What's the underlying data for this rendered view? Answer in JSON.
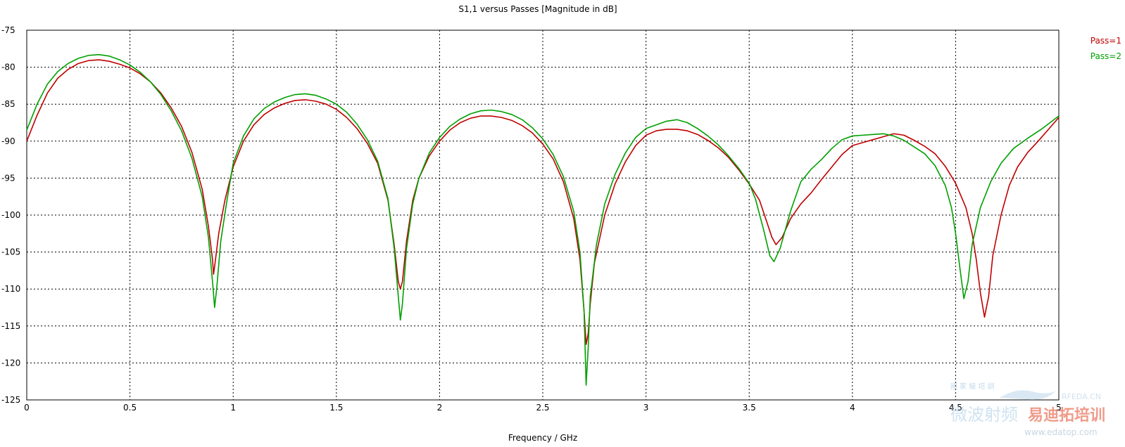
{
  "chart_data": {
    "type": "line",
    "title": "S1,1 versus Passes [Magnitude in dB]",
    "xlabel": "Frequency / GHz",
    "ylabel": "",
    "xlim": [
      0,
      5
    ],
    "ylim": [
      -125,
      -75
    ],
    "xticks": [
      0,
      0.5,
      1,
      1.5,
      2,
      2.5,
      3,
      3.5,
      4,
      4.5,
      5
    ],
    "xtick_labels": [
      "0",
      "0.5",
      "1",
      "1.5",
      "2",
      "2.5",
      "3",
      "3.5",
      "4",
      "4.5",
      "5"
    ],
    "yticks": [
      -75,
      -80,
      -85,
      -90,
      -95,
      -100,
      -105,
      -110,
      -115,
      -120,
      -125
    ],
    "ytick_labels": [
      "-75",
      "-80",
      "-85",
      "-90",
      "-95",
      "-100",
      "-105",
      "-110",
      "-115",
      "-120",
      "-125"
    ],
    "grid": true,
    "legend_position": "top-right",
    "series": [
      {
        "name": "Pass=1",
        "color": "#c00000",
        "points": [
          [
            0,
            -90.0
          ],
          [
            0.05,
            -86.5
          ],
          [
            0.1,
            -83.5
          ],
          [
            0.15,
            -81.5
          ],
          [
            0.2,
            -80.3
          ],
          [
            0.25,
            -79.5
          ],
          [
            0.3,
            -79.1
          ],
          [
            0.35,
            -79.0
          ],
          [
            0.4,
            -79.2
          ],
          [
            0.45,
            -79.6
          ],
          [
            0.5,
            -80.1
          ],
          [
            0.55,
            -80.9
          ],
          [
            0.6,
            -82.0
          ],
          [
            0.65,
            -83.5
          ],
          [
            0.7,
            -85.5
          ],
          [
            0.75,
            -88.0
          ],
          [
            0.8,
            -91.5
          ],
          [
            0.85,
            -96.5
          ],
          [
            0.88,
            -101.5
          ],
          [
            0.9,
            -106.0
          ],
          [
            0.905,
            -108.0
          ],
          [
            0.91,
            -107.0
          ],
          [
            0.93,
            -102.5
          ],
          [
            0.96,
            -98.0
          ],
          [
            1.0,
            -93.5
          ],
          [
            1.05,
            -90.0
          ],
          [
            1.1,
            -87.8
          ],
          [
            1.15,
            -86.4
          ],
          [
            1.2,
            -85.5
          ],
          [
            1.25,
            -84.9
          ],
          [
            1.3,
            -84.5
          ],
          [
            1.35,
            -84.4
          ],
          [
            1.4,
            -84.6
          ],
          [
            1.45,
            -85.0
          ],
          [
            1.5,
            -85.7
          ],
          [
            1.55,
            -86.8
          ],
          [
            1.6,
            -88.3
          ],
          [
            1.65,
            -90.3
          ],
          [
            1.7,
            -93.0
          ],
          [
            1.75,
            -98.0
          ],
          [
            1.78,
            -104.0
          ],
          [
            1.8,
            -109.0
          ],
          [
            1.81,
            -110.0
          ],
          [
            1.82,
            -109.0
          ],
          [
            1.84,
            -103.5
          ],
          [
            1.87,
            -98.0
          ],
          [
            1.9,
            -95.0
          ],
          [
            1.95,
            -92.0
          ],
          [
            2.0,
            -90.0
          ],
          [
            2.05,
            -88.5
          ],
          [
            2.1,
            -87.5
          ],
          [
            2.15,
            -86.9
          ],
          [
            2.2,
            -86.6
          ],
          [
            2.25,
            -86.6
          ],
          [
            2.3,
            -86.8
          ],
          [
            2.35,
            -87.2
          ],
          [
            2.4,
            -87.9
          ],
          [
            2.45,
            -88.9
          ],
          [
            2.5,
            -90.4
          ],
          [
            2.55,
            -92.4
          ],
          [
            2.6,
            -95.5
          ],
          [
            2.65,
            -100.5
          ],
          [
            2.68,
            -106.0
          ],
          [
            2.7,
            -113.0
          ],
          [
            2.71,
            -117.5
          ],
          [
            2.72,
            -116.0
          ],
          [
            2.73,
            -112.0
          ],
          [
            2.75,
            -106.5
          ],
          [
            2.8,
            -100.0
          ],
          [
            2.85,
            -95.8
          ],
          [
            2.9,
            -92.8
          ],
          [
            2.95,
            -90.6
          ],
          [
            3.0,
            -89.2
          ],
          [
            3.05,
            -88.6
          ],
          [
            3.1,
            -88.4
          ],
          [
            3.15,
            -88.4
          ],
          [
            3.2,
            -88.6
          ],
          [
            3.25,
            -89.1
          ],
          [
            3.3,
            -89.9
          ],
          [
            3.35,
            -90.9
          ],
          [
            3.4,
            -92.2
          ],
          [
            3.45,
            -93.9
          ],
          [
            3.5,
            -95.8
          ],
          [
            3.55,
            -98.0
          ],
          [
            3.58,
            -100.5
          ],
          [
            3.61,
            -103.0
          ],
          [
            3.63,
            -104.0
          ],
          [
            3.66,
            -103.0
          ],
          [
            3.7,
            -100.5
          ],
          [
            3.75,
            -98.5
          ],
          [
            3.8,
            -97.0
          ],
          [
            3.85,
            -95.2
          ],
          [
            3.9,
            -93.5
          ],
          [
            3.95,
            -91.8
          ],
          [
            4.0,
            -90.6
          ],
          [
            4.05,
            -90.2
          ],
          [
            4.1,
            -89.8
          ],
          [
            4.15,
            -89.4
          ],
          [
            4.2,
            -89.0
          ],
          [
            4.25,
            -89.2
          ],
          [
            4.3,
            -89.9
          ],
          [
            4.35,
            -90.7
          ],
          [
            4.4,
            -91.7
          ],
          [
            4.45,
            -93.4
          ],
          [
            4.5,
            -95.7
          ],
          [
            4.55,
            -99.0
          ],
          [
            4.58,
            -102.5
          ],
          [
            4.6,
            -106.0
          ],
          [
            4.62,
            -110.5
          ],
          [
            4.64,
            -113.8
          ],
          [
            4.66,
            -111.0
          ],
          [
            4.68,
            -105.5
          ],
          [
            4.72,
            -100.0
          ],
          [
            4.76,
            -96.0
          ],
          [
            4.8,
            -93.5
          ],
          [
            4.85,
            -91.5
          ],
          [
            4.9,
            -90.0
          ],
          [
            4.95,
            -88.4
          ],
          [
            5.0,
            -86.8
          ]
        ]
      },
      {
        "name": "Pass=2",
        "color": "#00a000",
        "points": [
          [
            0,
            -88.5
          ],
          [
            0.05,
            -85.0
          ],
          [
            0.1,
            -82.3
          ],
          [
            0.15,
            -80.6
          ],
          [
            0.2,
            -79.5
          ],
          [
            0.25,
            -78.8
          ],
          [
            0.3,
            -78.4
          ],
          [
            0.35,
            -78.3
          ],
          [
            0.4,
            -78.5
          ],
          [
            0.45,
            -79.0
          ],
          [
            0.5,
            -79.7
          ],
          [
            0.55,
            -80.7
          ],
          [
            0.6,
            -82.0
          ],
          [
            0.65,
            -83.7
          ],
          [
            0.7,
            -85.9
          ],
          [
            0.75,
            -88.6
          ],
          [
            0.8,
            -92.3
          ],
          [
            0.85,
            -97.5
          ],
          [
            0.88,
            -103.0
          ],
          [
            0.9,
            -109.0
          ],
          [
            0.91,
            -112.5
          ],
          [
            0.92,
            -110.0
          ],
          [
            0.94,
            -103.5
          ],
          [
            0.97,
            -98.0
          ],
          [
            1.0,
            -93.0
          ],
          [
            1.05,
            -89.3
          ],
          [
            1.1,
            -87.0
          ],
          [
            1.15,
            -85.6
          ],
          [
            1.2,
            -84.7
          ],
          [
            1.25,
            -84.1
          ],
          [
            1.3,
            -83.7
          ],
          [
            1.35,
            -83.6
          ],
          [
            1.4,
            -83.8
          ],
          [
            1.45,
            -84.3
          ],
          [
            1.5,
            -85.0
          ],
          [
            1.55,
            -86.1
          ],
          [
            1.6,
            -87.7
          ],
          [
            1.65,
            -89.8
          ],
          [
            1.7,
            -92.7
          ],
          [
            1.75,
            -97.8
          ],
          [
            1.78,
            -104.5
          ],
          [
            1.8,
            -111.0
          ],
          [
            1.81,
            -114.2
          ],
          [
            1.82,
            -112.0
          ],
          [
            1.84,
            -104.5
          ],
          [
            1.87,
            -98.5
          ],
          [
            1.9,
            -95.0
          ],
          [
            1.95,
            -91.6
          ],
          [
            2.0,
            -89.5
          ],
          [
            2.05,
            -88.0
          ],
          [
            2.1,
            -87.0
          ],
          [
            2.15,
            -86.3
          ],
          [
            2.2,
            -85.9
          ],
          [
            2.25,
            -85.8
          ],
          [
            2.3,
            -86.0
          ],
          [
            2.35,
            -86.4
          ],
          [
            2.4,
            -87.1
          ],
          [
            2.45,
            -88.2
          ],
          [
            2.5,
            -89.7
          ],
          [
            2.55,
            -91.8
          ],
          [
            2.6,
            -94.8
          ],
          [
            2.65,
            -99.5
          ],
          [
            2.68,
            -105.0
          ],
          [
            2.7,
            -113.0
          ],
          [
            2.71,
            -123.0
          ],
          [
            2.72,
            -118.0
          ],
          [
            2.73,
            -111.0
          ],
          [
            2.76,
            -104.0
          ],
          [
            2.8,
            -98.5
          ],
          [
            2.85,
            -94.5
          ],
          [
            2.9,
            -91.6
          ],
          [
            2.95,
            -89.5
          ],
          [
            3.0,
            -88.3
          ],
          [
            3.05,
            -87.8
          ],
          [
            3.1,
            -87.3
          ],
          [
            3.15,
            -87.1
          ],
          [
            3.2,
            -87.5
          ],
          [
            3.25,
            -88.3
          ],
          [
            3.3,
            -89.3
          ],
          [
            3.35,
            -90.5
          ],
          [
            3.4,
            -92.0
          ],
          [
            3.45,
            -93.7
          ],
          [
            3.5,
            -95.7
          ],
          [
            3.53,
            -97.8
          ],
          [
            3.57,
            -102.0
          ],
          [
            3.6,
            -105.5
          ],
          [
            3.62,
            -106.3
          ],
          [
            3.65,
            -104.5
          ],
          [
            3.7,
            -99.5
          ],
          [
            3.75,
            -95.5
          ],
          [
            3.8,
            -93.8
          ],
          [
            3.85,
            -92.5
          ],
          [
            3.9,
            -91.0
          ],
          [
            3.95,
            -89.8
          ],
          [
            4.0,
            -89.3
          ],
          [
            4.05,
            -89.2
          ],
          [
            4.1,
            -89.1
          ],
          [
            4.15,
            -89.0
          ],
          [
            4.2,
            -89.3
          ],
          [
            4.25,
            -89.9
          ],
          [
            4.3,
            -90.8
          ],
          [
            4.35,
            -91.7
          ],
          [
            4.4,
            -93.3
          ],
          [
            4.45,
            -96.0
          ],
          [
            4.48,
            -99.0
          ],
          [
            4.5,
            -102.5
          ],
          [
            4.52,
            -107.0
          ],
          [
            4.54,
            -111.3
          ],
          [
            4.56,
            -109.0
          ],
          [
            4.58,
            -104.0
          ],
          [
            4.62,
            -99.0
          ],
          [
            4.67,
            -95.5
          ],
          [
            4.72,
            -93.0
          ],
          [
            4.78,
            -91.0
          ],
          [
            4.85,
            -89.6
          ],
          [
            4.92,
            -88.3
          ],
          [
            5.0,
            -86.6
          ]
        ]
      }
    ]
  },
  "watermark": {
    "top_text": "國 家 級 培 訓",
    "site_left": "RFEDA.CN",
    "main_left": "微波射频",
    "main_right": "易迪拓培训",
    "url": "www.edatop.com"
  }
}
